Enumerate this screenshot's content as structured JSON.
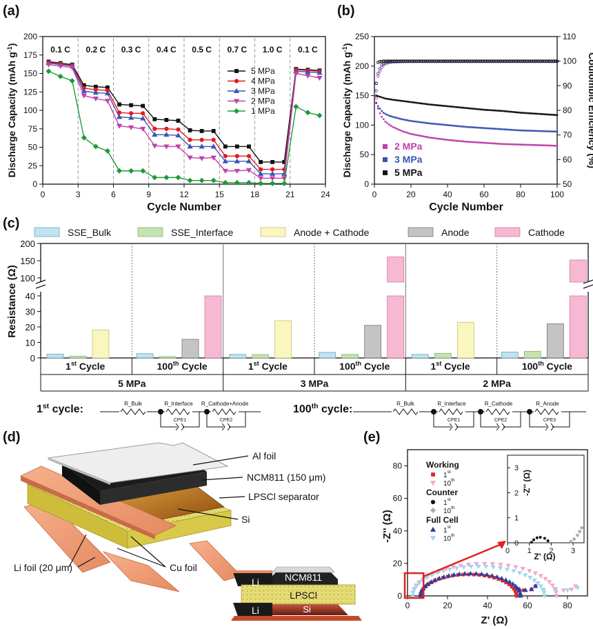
{
  "figure": {
    "panel_a": {
      "letter": "(a)",
      "ylabel": "Discharge Capacity (mAh g⁻¹)",
      "ylabel_main": "Discharge Capacity (mAh g",
      "ylabel_exp": "-1",
      "ylabel_close": ")",
      "xlabel": "Cycle Number",
      "rates": [
        "0.1 C",
        "0.2 C",
        "0.3 C",
        "0.4 C",
        "0.5 C",
        "0.7 C",
        "1.0 C",
        "0.1 C"
      ]
    },
    "panel_b": {
      "letter": "(b)",
      "ylabel_left_main": "Discharge Capacity (mAh g",
      "ylabel_left_exp": "-1",
      "ylabel_left_close": ")",
      "ylabel_right": "Coulombic Efficiency (%)",
      "xlabel": "Cycle Number"
    },
    "panel_c": {
      "letter": "(c)",
      "ylabel": "Resistance (Ω)",
      "legend": [
        "SSE_Bulk",
        "SSE_Interface",
        "Anode + Cathode",
        "Anode",
        "Cathode"
      ],
      "cycle_labels": [
        {
          "num": "1",
          "sup": "st",
          "word": " Cycle"
        },
        {
          "num": "100",
          "sup": "th",
          "word": " Cycle"
        },
        {
          "num": "1",
          "sup": "st",
          "word": " Cycle"
        },
        {
          "num": "100",
          "sup": "th",
          "word": " Cycle"
        },
        {
          "num": "1",
          "sup": "st",
          "word": " Cycle"
        },
        {
          "num": "100",
          "sup": "th",
          "word": " Cycle"
        }
      ],
      "pressure_labels": [
        "5 MPa",
        "3 MPa",
        "2 MPa"
      ],
      "circuit_1st": {
        "prefix": "1",
        "sup": "st",
        "suffix": " cycle:",
        "r": [
          "R_Bulk",
          "R_Interface",
          "R_Cathode+Anode"
        ],
        "cpe": [
          "CPE1",
          "CPE2"
        ]
      },
      "circuit_100th": {
        "prefix": "100",
        "sup": "th",
        "suffix": " cycle:",
        "r": [
          "R_Bulk",
          "R_Interface",
          "R_Cathode",
          "R_Anode"
        ],
        "cpe": [
          "CPE1",
          "CPE2",
          "CPE3"
        ]
      }
    },
    "panel_d": {
      "letter": "(d)",
      "labels": [
        "Al foil",
        "NCM811 (150 μm)",
        "LPSCl separator",
        "Si",
        "Cu foil",
        "Li foil (20 μm)"
      ],
      "cross_section": [
        "NCM811",
        "LPSCl",
        "Si",
        "Li",
        "Li"
      ]
    },
    "panel_e": {
      "letter": "(e)",
      "ylabel": "-Z'' (Ω)",
      "xlabel": "Z' (Ω)",
      "inset_ylabel": "-Z'' (Ω)",
      "inset_xlabel": "Z' (Ω)",
      "legend_groups": [
        {
          "title": "Working",
          "items": [
            {
              "num": "1",
              "sup": "st"
            },
            {
              "num": "10",
              "sup": "th"
            }
          ]
        },
        {
          "title": "Counter",
          "items": [
            {
              "num": "1",
              "sup": "st"
            },
            {
              "num": "10",
              "sup": "th"
            }
          ]
        },
        {
          "title": "Full Cell",
          "items": [
            {
              "num": "1",
              "sup": "st"
            },
            {
              "num": "10",
              "sup": "th"
            }
          ]
        }
      ]
    }
  },
  "colors": {
    "black": "#111111",
    "red": "#e41a1c",
    "blue": "#3a54b4",
    "magenta": "#c040a8",
    "green": "#1f9a3a",
    "sse_bulk": "#bfe3ef",
    "sse_interface": "#c5e3b0",
    "anode_cathode": "#fbf6c0",
    "anode": "#c4c4c4",
    "cathode": "#f6b8d2",
    "working1": "#e0282e",
    "working10": "#f4a8c8",
    "counter1": "#111111",
    "counter10": "#aaaaaa",
    "full1": "#2a3fa0",
    "full10": "#9fd8ef",
    "highlight": "#e02020"
  },
  "chart_data": [
    {
      "id": "a",
      "type": "line",
      "title": "",
      "xlabel": "Cycle Number",
      "ylabel": "Discharge Capacity (mAh g-1)",
      "xlim": [
        0,
        24
      ],
      "ylim": [
        0,
        200
      ],
      "xticks": [
        0,
        3,
        6,
        9,
        12,
        15,
        18,
        21,
        24
      ],
      "yticks": [
        0,
        25,
        50,
        75,
        100,
        125,
        150,
        175,
        200
      ],
      "rate_boundaries": [
        3,
        6,
        9,
        12,
        15,
        18,
        21
      ],
      "legend_position": "center-right",
      "series": [
        {
          "name": "5 MPa",
          "color": "#111111",
          "marker": "square",
          "x": [
            0.5,
            1.5,
            2.5,
            3.5,
            4.5,
            5.5,
            6.5,
            7.5,
            8.5,
            9.5,
            10.5,
            11.5,
            12.5,
            13.5,
            14.5,
            15.5,
            16.5,
            17.5,
            18.5,
            19.5,
            20.5,
            21.5,
            22.5,
            23.5
          ],
          "y": [
            166,
            164,
            162,
            134,
            132,
            131,
            108,
            107,
            106,
            88,
            87,
            86,
            73,
            72,
            72,
            51,
            51,
            51,
            30,
            30,
            30,
            156,
            155,
            154
          ]
        },
        {
          "name": "4 MPa",
          "color": "#e41a1c",
          "marker": "circle",
          "x": [
            0.5,
            1.5,
            2.5,
            3.5,
            4.5,
            5.5,
            6.5,
            7.5,
            8.5,
            9.5,
            10.5,
            11.5,
            12.5,
            13.5,
            14.5,
            15.5,
            16.5,
            17.5,
            18.5,
            19.5,
            20.5,
            21.5,
            22.5,
            23.5
          ],
          "y": [
            165,
            163,
            161,
            130,
            128,
            127,
            97,
            96,
            96,
            75,
            75,
            74,
            60,
            60,
            60,
            38,
            38,
            38,
            20,
            20,
            20,
            155,
            154,
            153
          ]
        },
        {
          "name": "3 MPa",
          "color": "#3a54b4",
          "marker": "triangle",
          "x": [
            0.5,
            1.5,
            2.5,
            3.5,
            4.5,
            5.5,
            6.5,
            7.5,
            8.5,
            9.5,
            10.5,
            11.5,
            12.5,
            13.5,
            14.5,
            15.5,
            16.5,
            17.5,
            18.5,
            19.5,
            20.5,
            21.5,
            22.5,
            23.5
          ],
          "y": [
            164,
            162,
            160,
            126,
            124,
            123,
            91,
            90,
            89,
            67,
            67,
            66,
            51,
            51,
            51,
            31,
            31,
            31,
            14,
            14,
            14,
            153,
            152,
            151
          ]
        },
        {
          "name": "2 MPa",
          "color": "#c040a8",
          "marker": "triangle-down",
          "x": [
            0.5,
            1.5,
            2.5,
            3.5,
            4.5,
            5.5,
            6.5,
            7.5,
            8.5,
            9.5,
            10.5,
            11.5,
            12.5,
            13.5,
            14.5,
            15.5,
            16.5,
            17.5,
            18.5,
            19.5,
            20.5,
            21.5,
            22.5,
            23.5
          ],
          "y": [
            162,
            160,
            158,
            120,
            116,
            113,
            79,
            77,
            75,
            52,
            51,
            51,
            36,
            35,
            36,
            18,
            18,
            19,
            8,
            8,
            8,
            150,
            147,
            144
          ]
        },
        {
          "name": "1 MPa",
          "color": "#1f9a3a",
          "marker": "diamond",
          "x": [
            0.5,
            1.5,
            2.5,
            3.5,
            4.5,
            5.5,
            6.5,
            7.5,
            8.5,
            9.5,
            10.5,
            11.5,
            12.5,
            13.5,
            14.5,
            15.5,
            16.5,
            17.5,
            18.5,
            19.5,
            20.5,
            21.5,
            22.5,
            23.5
          ],
          "y": [
            153,
            146,
            140,
            63,
            51,
            45,
            18,
            18,
            18,
            9,
            9,
            9,
            5,
            5,
            5,
            2,
            2,
            2,
            1,
            1,
            1,
            105,
            97,
            93
          ]
        }
      ]
    },
    {
      "id": "b",
      "type": "scatter",
      "xlabel": "Cycle Number",
      "ylabel": "Discharge Capacity (mAh g-1)",
      "y2label": "Coulombic Efficiency (%)",
      "xlim": [
        0,
        100
      ],
      "ylim": [
        0,
        250
      ],
      "y2lim": [
        50,
        110
      ],
      "xticks": [
        0,
        20,
        40,
        60,
        80,
        100
      ],
      "yticks": [
        0,
        50,
        100,
        150,
        200,
        250
      ],
      "y2ticks": [
        50,
        60,
        70,
        80,
        90,
        100,
        110
      ],
      "legend_position": "bottom-left",
      "series": [
        {
          "name": "2 MPa",
          "color": "#c040a8",
          "axis": "left",
          "x": [
            1,
            2,
            3,
            4,
            5,
            6,
            8,
            10,
            15,
            20,
            30,
            40,
            50,
            60,
            70,
            80,
            90,
            100
          ],
          "y": [
            138,
            128,
            120,
            114,
            110,
            106,
            101,
            97,
            90,
            85,
            79,
            75,
            72,
            70,
            68,
            67,
            66,
            65
          ]
        },
        {
          "name": "3 MPa",
          "color": "#3a54b4",
          "axis": "left",
          "x": [
            1,
            2,
            3,
            4,
            5,
            6,
            8,
            10,
            15,
            20,
            30,
            40,
            50,
            60,
            70,
            80,
            90,
            100
          ],
          "y": [
            137,
            132,
            128,
            124,
            121,
            119,
            116,
            114,
            110,
            107,
            103,
            100,
            97,
            95,
            93,
            91,
            90,
            89
          ]
        },
        {
          "name": "5 MPa",
          "color": "#111111",
          "axis": "left",
          "x": [
            1,
            2,
            3,
            4,
            5,
            6,
            8,
            10,
            15,
            20,
            30,
            40,
            50,
            60,
            70,
            80,
            90,
            100
          ],
          "y": [
            150,
            149,
            148,
            147,
            146,
            145,
            144,
            143,
            141,
            139,
            135,
            132,
            129,
            126,
            124,
            121,
            119,
            117
          ]
        },
        {
          "name": "CE 2 MPa",
          "color": "#c040a8",
          "axis": "right",
          "marker": "open-circle",
          "x": [
            1,
            2,
            3,
            4,
            5,
            6,
            8,
            10,
            15,
            20,
            30,
            40,
            50,
            60,
            70,
            80,
            90,
            100
          ],
          "y": [
            85,
            94,
            96,
            97.5,
            98.5,
            99,
            99.5,
            99.7,
            99.8,
            99.9,
            99.9,
            99.9,
            99.9,
            99.9,
            99.9,
            99.9,
            99.9,
            99.9
          ]
        },
        {
          "name": "CE 3 MPa",
          "color": "#3a54b4",
          "axis": "right",
          "marker": "open-circle",
          "x": [
            1,
            2,
            3,
            4,
            5,
            6,
            8,
            10,
            15,
            20,
            30,
            40,
            50,
            60,
            70,
            80,
            90,
            100
          ],
          "y": [
            88,
            95,
            97,
            98.5,
            99,
            99.4,
            99.7,
            99.8,
            99.9,
            99.9,
            99.9,
            99.9,
            99.9,
            99.9,
            99.9,
            99.9,
            99.9,
            99.9
          ]
        },
        {
          "name": "CE 5 MPa",
          "color": "#111111",
          "axis": "right",
          "marker": "open-circle",
          "x": [
            1,
            2,
            3,
            4,
            5,
            6,
            8,
            10,
            15,
            20,
            30,
            40,
            50,
            60,
            70,
            80,
            90,
            100
          ],
          "y": [
            91,
            99.5,
            99.8,
            99.9,
            100,
            100,
            100,
            100,
            100,
            100,
            100,
            100,
            100,
            100,
            100,
            100,
            100,
            100
          ]
        }
      ]
    },
    {
      "id": "c",
      "type": "bar",
      "ylabel": "Resistance (Ω)",
      "y_lower_ticks": [
        0,
        10,
        20,
        30,
        40
      ],
      "y_upper_ticks": [
        100,
        150,
        200
      ],
      "axis_break": [
        45,
        75
      ],
      "legend_position": "top",
      "groups": [
        {
          "pressure": "5 MPa",
          "cycle": "1st Cycle",
          "values": {
            "SSE_Bulk": 2.5,
            "SSE_Interface": 1.2,
            "Anode + Cathode": 18
          }
        },
        {
          "pressure": "5 MPa",
          "cycle": "100th Cycle",
          "values": {
            "SSE_Bulk": 2.8,
            "SSE_Interface": 0.9,
            "Anode": 12,
            "Cathode": 73
          }
        },
        {
          "pressure": "3 MPa",
          "cycle": "1st Cycle",
          "values": {
            "SSE_Bulk": 2.3,
            "SSE_Interface": 2.2,
            "Anode + Cathode": 24
          }
        },
        {
          "pressure": "3 MPa",
          "cycle": "100th Cycle",
          "values": {
            "SSE_Bulk": 3.6,
            "SSE_Interface": 2.3,
            "Anode": 21,
            "Cathode": 161
          }
        },
        {
          "pressure": "2 MPa",
          "cycle": "1st Cycle",
          "values": {
            "SSE_Bulk": 2.3,
            "SSE_Interface": 3.0,
            "Anode + Cathode": 23
          }
        },
        {
          "pressure": "2 MPa",
          "cycle": "100th Cycle",
          "values": {
            "SSE_Bulk": 3.8,
            "SSE_Interface": 4.3,
            "Anode": 22,
            "Cathode": 152
          }
        }
      ]
    },
    {
      "id": "e",
      "type": "scatter",
      "xlabel": "Z' (Ω)",
      "ylabel": "-Z'' (Ω)",
      "xlim": [
        0,
        90
      ],
      "ylim": [
        0,
        90
      ],
      "xticks": [
        0,
        20,
        40,
        60,
        80
      ],
      "yticks": [
        0,
        20,
        40,
        60,
        80
      ],
      "inset": {
        "xlim": [
          0,
          3.5
        ],
        "ylim": [
          0,
          3.5
        ],
        "xticks": [
          0,
          1,
          2,
          3
        ],
        "yticks": [
          0,
          1,
          2,
          3
        ]
      },
      "legend_position": "top-left",
      "series": [
        {
          "name": "Working 1st",
          "color": "#e0282e",
          "marker": "square",
          "center": 29,
          "radius": 24,
          "tail_x": [
            54,
            58,
            62,
            64
          ],
          "tail_y": [
            4,
            3.5,
            4,
            6
          ]
        },
        {
          "name": "Working 10th",
          "color": "#f4a8c8",
          "marker": "triangle-down",
          "center": 37,
          "radius": 36,
          "tail_x": [
            74,
            78,
            82,
            84
          ],
          "tail_y": [
            4,
            3.5,
            4,
            6
          ]
        },
        {
          "name": "Counter 1st",
          "color": "#111111",
          "marker": "circle",
          "inset_x": [
            1.1,
            1.2,
            1.35,
            1.5,
            1.7,
            1.85
          ],
          "inset_y": [
            0.02,
            0.12,
            0.2,
            0.22,
            0.18,
            0.08
          ]
        },
        {
          "name": "Counter 10th",
          "color": "#aaaaaa",
          "marker": "diamond",
          "inset_x": [
            2.9,
            3.05,
            3.2,
            3.3,
            3.4
          ],
          "inset_y": [
            0.05,
            0.15,
            0.3,
            0.45,
            0.6
          ]
        },
        {
          "name": "Full Cell 1st",
          "color": "#2a3fa0",
          "marker": "triangle",
          "center": 30,
          "radius": 25,
          "tail_x": [
            56,
            59,
            62,
            64
          ],
          "tail_y": [
            4,
            3.5,
            4,
            6
          ]
        },
        {
          "name": "Full Cell 10th",
          "color": "#9fd8ef",
          "marker": "triangle-down",
          "center": 34,
          "radius": 33,
          "tail_x": [
            68,
            74,
            80,
            85
          ],
          "tail_y": [
            3.5,
            3,
            3.5,
            5
          ]
        }
      ]
    }
  ]
}
